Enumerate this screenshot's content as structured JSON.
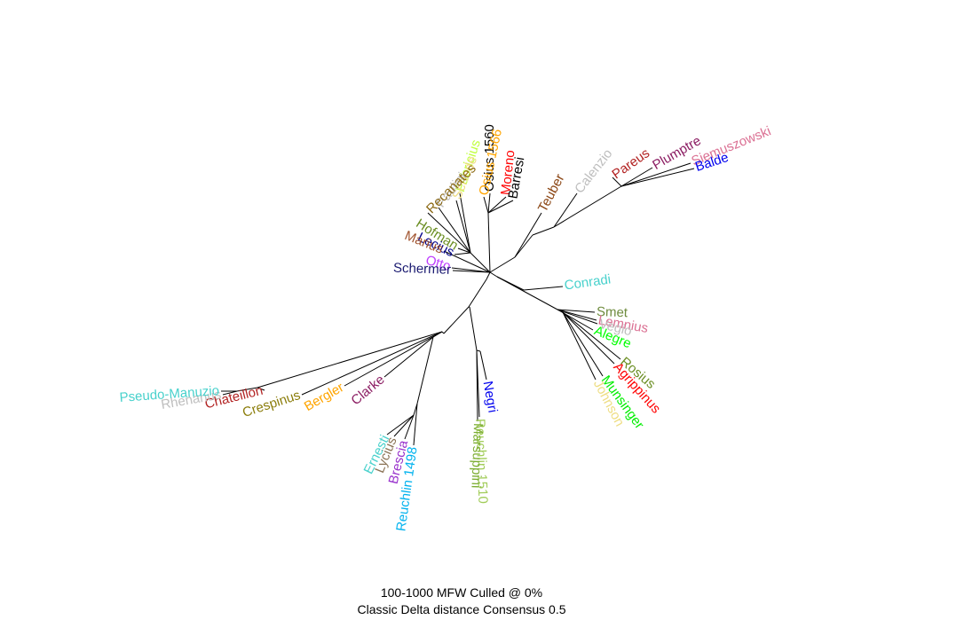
{
  "figure": {
    "type": "unrooted-consensus-tree",
    "caption_line1": "100-1000 MFW  Culled @ 0%",
    "caption_line2": "Classic Delta distance Consensus 0.5"
  },
  "leaves": [
    {
      "label": "Osius 1560",
      "color": "#000000"
    },
    {
      "label": "Osius 1566",
      "color": "#ffa500"
    },
    {
      "label": "Fabricius",
      "color": "#c0ff3e"
    },
    {
      "label": "Schede",
      "color": "#eedd82"
    },
    {
      "label": "Paolini",
      "color": "#bebebe"
    },
    {
      "label": "Recanates",
      "color": "#8b6914"
    },
    {
      "label": "Hofman",
      "color": "#6b8e23"
    },
    {
      "label": "Lecius",
      "color": "#00008b"
    },
    {
      "label": "Marius",
      "color": "#a0522d"
    },
    {
      "label": "Otto",
      "color": "#bf3eff"
    },
    {
      "label": "Schermer",
      "color": "#191970"
    },
    {
      "label": "Moreno",
      "color": "#ff0000"
    },
    {
      "label": "Barresi",
      "color": "#000000"
    },
    {
      "label": "Teuber",
      "color": "#8b4513"
    },
    {
      "label": "Calenzio",
      "color": "#bebebe"
    },
    {
      "label": "Pareus",
      "color": "#b22222"
    },
    {
      "label": "Plumptre",
      "color": "#8b1c62"
    },
    {
      "label": "Siemuszowski",
      "color": "#db7093"
    },
    {
      "label": "Balde",
      "color": "#0000ee"
    },
    {
      "label": "Conradi",
      "color": "#48d1cc"
    },
    {
      "label": "Smet",
      "color": "#6e8b3d"
    },
    {
      "label": "Lemnius",
      "color": "#db7093"
    },
    {
      "label": "Vegio",
      "color": "#bebebe"
    },
    {
      "label": "Alegre",
      "color": "#00ff00"
    },
    {
      "label": "Rosius",
      "color": "#6b8e23"
    },
    {
      "label": "Agrippinus",
      "color": "#ff0000"
    },
    {
      "label": "Munsinger",
      "color": "#00ee00"
    },
    {
      "label": "Johnson",
      "color": "#eedd82"
    },
    {
      "label": "Negri",
      "color": "#0000ee"
    },
    {
      "label": "Reuchlin 1510",
      "color": "#a2cd5a"
    },
    {
      "label": "Marsuppini",
      "color": "#7cad32"
    },
    {
      "label": "Reuchlin 1498",
      "color": "#00b2ee"
    },
    {
      "label": "Brescia",
      "color": "#9932cc"
    },
    {
      "label": "Lycius",
      "color": "#8b7355"
    },
    {
      "label": "Ernesti",
      "color": "#48d1cc"
    },
    {
      "label": "Clarke",
      "color": "#8b1c62"
    },
    {
      "label": "Bergler",
      "color": "#ffa500"
    },
    {
      "label": "Crespinus",
      "color": "#8b7d0b"
    },
    {
      "label": "Chateillon",
      "color": "#b22222"
    },
    {
      "label": "Rhenanus",
      "color": "#bebebe"
    },
    {
      "label": "Pseudo-Manuzio",
      "color": "#48d1cc"
    }
  ]
}
